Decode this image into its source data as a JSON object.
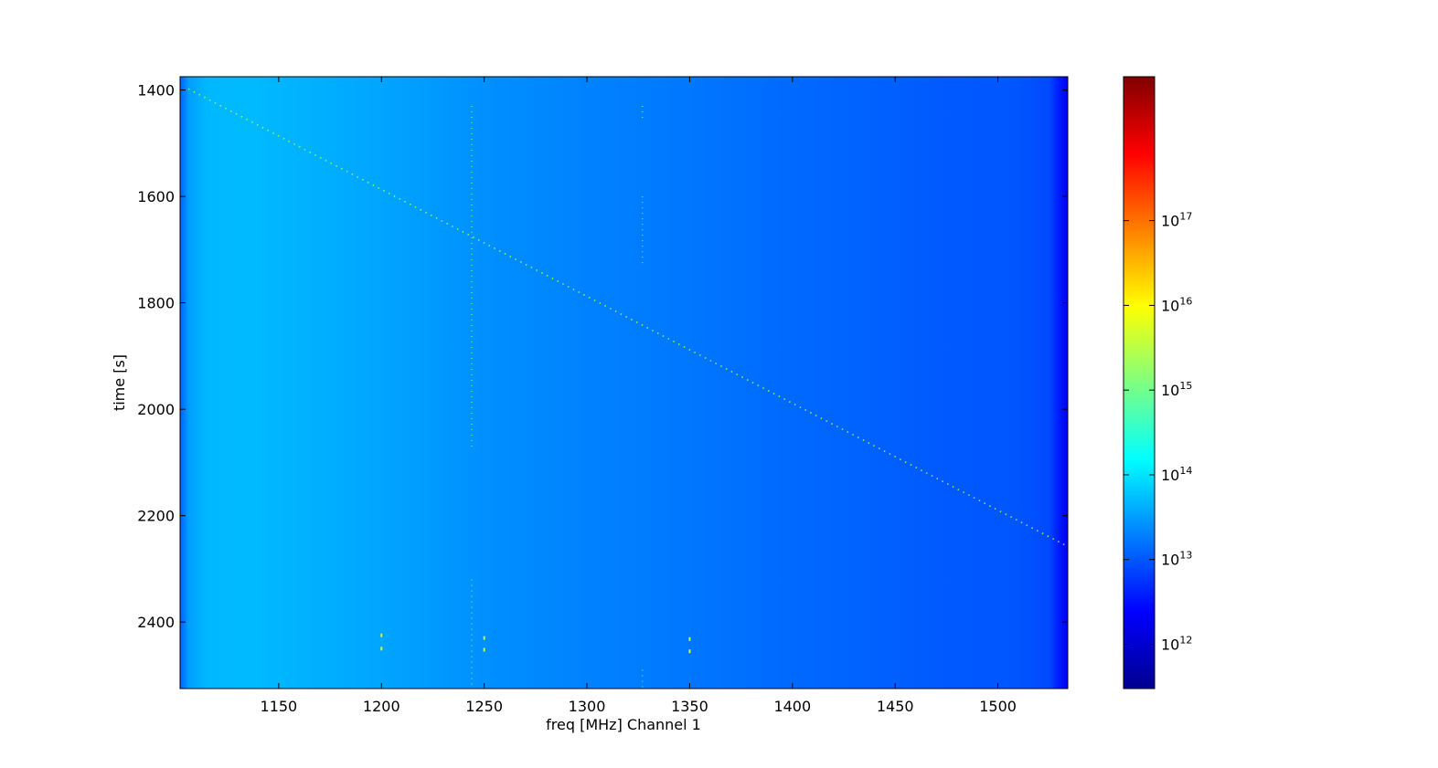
{
  "chart_data": {
    "type": "heatmap",
    "title": "",
    "xlabel": "freq [MHz] Channel 1",
    "ylabel": "time [s]",
    "xlim": [
      1102,
      1534
    ],
    "ylim": [
      2525,
      1375
    ],
    "x_ticks": [
      1150,
      1200,
      1250,
      1300,
      1350,
      1400,
      1450,
      1500
    ],
    "y_ticks": [
      1400,
      1600,
      1800,
      2000,
      2200,
      2400
    ],
    "colormap": "jet",
    "colorbar": {
      "scale": "log",
      "range": [
        300000000000,
        5000000000000000000
      ],
      "ticks": [
        {
          "value": 1000000000000.0,
          "base": "10",
          "exp": "12"
        },
        {
          "value": 10000000000000.0,
          "base": "10",
          "exp": "13"
        },
        {
          "value": 100000000000000.0,
          "base": "10",
          "exp": "14"
        },
        {
          "value": 1000000000000000.0,
          "base": "10",
          "exp": "15"
        },
        {
          "value": 1e+16,
          "base": "10",
          "exp": "16"
        },
        {
          "value": 1e+17,
          "base": "10",
          "exp": "17"
        }
      ]
    },
    "background_profile": {
      "freq": [
        1102,
        1106,
        1115,
        1135,
        1160,
        1200,
        1250,
        1300,
        1350,
        1400,
        1450,
        1480,
        1510,
        1525,
        1530,
        1534
      ],
      "log10_power": [
        13.05,
        13.5,
        13.68,
        13.7,
        13.65,
        13.55,
        13.4,
        13.3,
        13.22,
        13.12,
        13.05,
        13.0,
        12.98,
        12.9,
        12.55,
        12.3
      ]
    },
    "drift_track": {
      "start": {
        "freq": 1106,
        "time": 1398
      },
      "end": {
        "freq": 1534,
        "time": 2258
      },
      "log10_power": 15.4
    },
    "rfi_lines": [
      {
        "freq": 1244,
        "time_ranges": [
          [
            1430,
            2070
          ],
          [
            2320,
            2525
          ]
        ]
      },
      {
        "freq": 1327,
        "time_ranges": [
          [
            1430,
            1460
          ],
          [
            1600,
            1730
          ],
          [
            2490,
            2525
          ]
        ]
      }
    ],
    "rfi_spots": [
      {
        "freq": 1200,
        "time": 2425
      },
      {
        "freq": 1200,
        "time": 2450
      },
      {
        "freq": 1250,
        "time": 2430
      },
      {
        "freq": 1250,
        "time": 2452
      },
      {
        "freq": 1350,
        "time": 2432
      },
      {
        "freq": 1350,
        "time": 2455
      }
    ]
  }
}
